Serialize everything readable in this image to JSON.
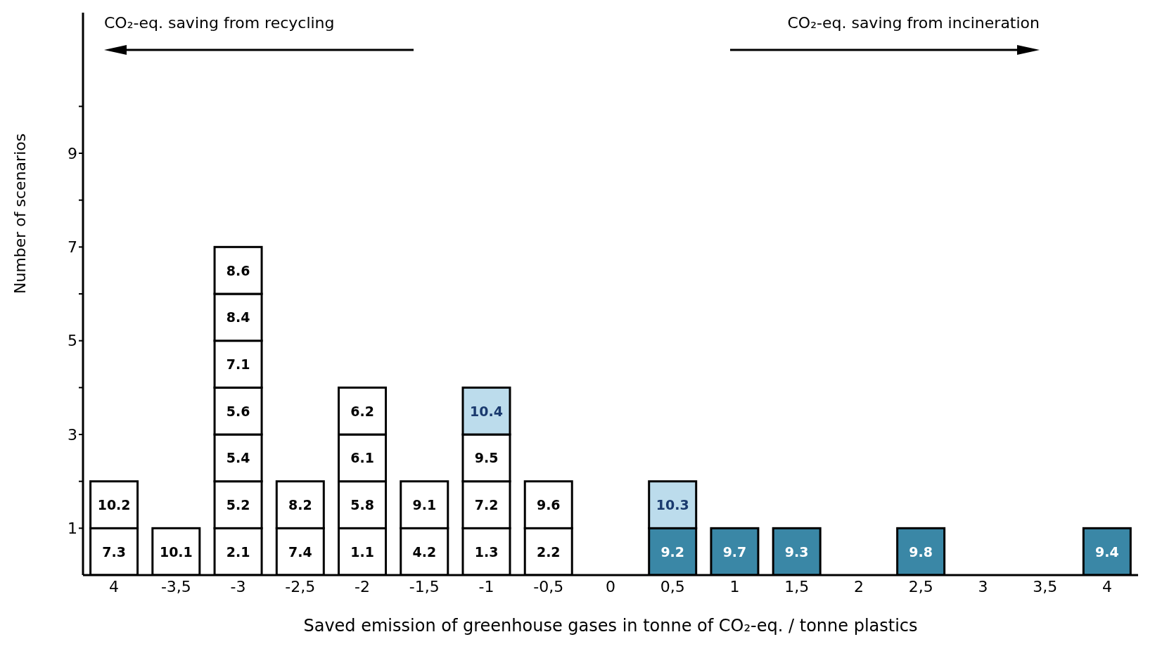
{
  "chart_data": {
    "type": "bar",
    "stacked": true,
    "xlabel": "Saved emission of greenhouse gases in tonne of CO₂-eq. / tonne plastics",
    "ylabel": "Number of scenarios",
    "annotations": [
      "CO₂-eq. saving from recycling",
      "CO₂-eq. saving from incineration",
      {
        "text": "7.3",
        "x": "4",
        "y": 1
      },
      {
        "text": "10.2",
        "x": "4",
        "y": 2
      },
      {
        "text": "10.1",
        "x": "-3,5",
        "y": 1
      },
      {
        "text": "2.1",
        "x": "-3",
        "y": 1
      },
      {
        "text": "5.2",
        "x": "-3",
        "y": 2
      },
      {
        "text": "5.4",
        "x": "-3",
        "y": 3
      },
      {
        "text": "5.6",
        "x": "-3",
        "y": 4
      },
      {
        "text": "7.1",
        "x": "-3",
        "y": 5
      },
      {
        "text": "8.4",
        "x": "-3",
        "y": 6
      },
      {
        "text": "8.6",
        "x": "-3",
        "y": 7
      },
      {
        "text": "7.4",
        "x": "-2,5",
        "y": 1
      },
      {
        "text": "8.2",
        "x": "-2,5",
        "y": 2
      },
      {
        "text": "1.1",
        "x": "-2",
        "y": 1
      },
      {
        "text": "5.8",
        "x": "-2",
        "y": 2
      },
      {
        "text": "6.1",
        "x": "-2",
        "y": 3
      },
      {
        "text": "6.2",
        "x": "-2",
        "y": 4
      },
      {
        "text": "4.2",
        "x": "-1,5",
        "y": 1
      },
      {
        "text": "9.1",
        "x": "-1,5",
        "y": 2
      },
      {
        "text": "1.3",
        "x": "-1",
        "y": 1
      },
      {
        "text": "7.2",
        "x": "-1",
        "y": 2
      },
      {
        "text": "9.5",
        "x": "-1",
        "y": 3
      },
      {
        "text": "10.4",
        "x": "-1",
        "y": 4
      },
      {
        "text": "2.2",
        "x": "-0,5",
        "y": 1
      },
      {
        "text": "9.6",
        "x": "-0,5",
        "y": 2
      },
      {
        "text": "9.2",
        "x": "0,5",
        "y": 1
      },
      {
        "text": "10.3",
        "x": "0,5",
        "y": 2
      },
      {
        "text": "9.7",
        "x": "1",
        "y": 1
      },
      {
        "text": "9.3",
        "x": "1,5",
        "y": 1
      },
      {
        "text": "9.8",
        "x": "2,5",
        "y": 1
      },
      "9.4"
    ],
    "categories": [
      "4",
      "-3,5",
      "-3",
      "-2,5",
      "-2",
      "-1,5",
      "-1",
      "-0,5",
      "0",
      "0,5",
      "1",
      "1,5",
      "2",
      "2,5",
      "3",
      "3,5",
      "4"
    ],
    "ylim": [
      0,
      12
    ],
    "yticks": [
      1,
      {
        "value": 2,
        "label": null
      },
      3,
      {
        "value": 4,
        "label": null
      },
      5,
      {
        "value": 6,
        "label": null
      },
      7,
      {
        "value": 8,
        "label": null
      },
      9,
      {
        "value": 10,
        "label": null
      }
    ],
    "grid": false,
    "legend": false,
    "series": [
      {
        "values": [
          1,
          1,
          1,
          1,
          1,
          1,
          1,
          1,
          null,
          1,
          1,
          1,
          null,
          1,
          null,
          null,
          1
        ],
        "colors": [
          "#ffffff",
          "#ffffff",
          "#ffffff",
          "#ffffff",
          "#ffffff",
          "#ffffff",
          "#ffffff",
          "#ffffff",
          null,
          "#3a87a6",
          "#3a87a6",
          "#3a87a6",
          null,
          "#3a87a6",
          null,
          null,
          "#3a87a6"
        ]
      },
      {
        "values": [
          1,
          null,
          1,
          1,
          1,
          1,
          1,
          1,
          null,
          1,
          null,
          null,
          null,
          null,
          null,
          null,
          null
        ],
        "colors": [
          "#ffffff",
          null,
          "#ffffff",
          "#ffffff",
          "#ffffff",
          "#ffffff",
          "#ffffff",
          "#ffffff",
          null,
          "#bcdcec",
          null,
          null,
          null,
          null,
          null,
          null,
          null
        ]
      },
      {
        "values": [
          null,
          null,
          1,
          null,
          1,
          null,
          1,
          null,
          null,
          null,
          null,
          null,
          null,
          null,
          null,
          null,
          null
        ],
        "colors": [
          null,
          null,
          "#ffffff",
          null,
          "#ffffff",
          null,
          "#ffffff",
          null,
          null,
          null,
          null,
          null,
          null,
          null,
          null,
          null,
          null
        ]
      },
      {
        "values": [
          null,
          null,
          1,
          null,
          1,
          null,
          1,
          null,
          null,
          null,
          null,
          null,
          null,
          null,
          null,
          null,
          null
        ],
        "colors": [
          null,
          null,
          "#ffffff",
          null,
          "#ffffff",
          null,
          "#bcdcec",
          null,
          null,
          null,
          null,
          null,
          null,
          null,
          null,
          null,
          null
        ]
      },
      {
        "values": [
          null,
          null,
          1,
          null,
          null,
          null,
          null,
          null,
          null,
          null,
          null,
          null,
          null,
          null,
          null,
          null,
          null
        ],
        "colors": [
          null,
          null,
          "#ffffff",
          null,
          null,
          null,
          null,
          null,
          null,
          null,
          null,
          null,
          null,
          null,
          null,
          null,
          null
        ]
      },
      {
        "values": [
          null,
          null,
          1,
          null,
          null,
          null,
          null,
          null,
          null,
          null,
          null,
          null,
          null,
          null,
          null,
          null,
          null
        ],
        "colors": [
          null,
          null,
          "#ffffff",
          null,
          null,
          null,
          null,
          null,
          null,
          null,
          null,
          null,
          null,
          null,
          null,
          null,
          null
        ]
      },
      {
        "values": [
          null,
          null,
          1,
          null,
          null,
          null,
          null,
          null,
          null,
          null,
          null,
          null,
          null,
          null,
          null,
          null,
          null
        ],
        "colors": [
          null,
          null,
          "#ffffff",
          null,
          null,
          null,
          null,
          null,
          null,
          null,
          null,
          null,
          null,
          null,
          null,
          null,
          null
        ]
      }
    ]
  }
}
